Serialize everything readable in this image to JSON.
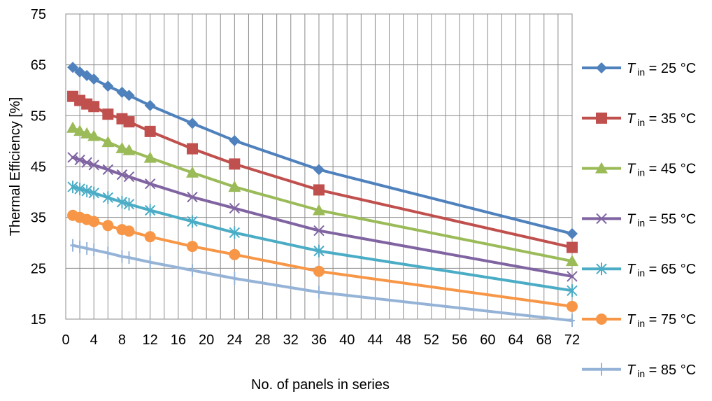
{
  "chart_data": {
    "type": "line",
    "title": "",
    "xlabel": "No. of panels in series",
    "ylabel": "Thermal Efficiency [%]",
    "xlim": [
      0,
      72
    ],
    "ylim": [
      15,
      75
    ],
    "x_ticks": [
      "0",
      "4",
      "8",
      "12",
      "16",
      "20",
      "24",
      "28",
      "32",
      "36",
      "40",
      "44",
      "48",
      "52",
      "56",
      "60",
      "64",
      "68",
      "72"
    ],
    "y_ticks": [
      "15",
      "25",
      "35",
      "45",
      "55",
      "65",
      "75"
    ],
    "grid": true,
    "legend_placement": "right",
    "x": [
      1,
      2,
      3,
      4,
      6,
      8,
      9,
      12,
      18,
      24,
      36,
      72
    ],
    "series": [
      {
        "name": "T_in = 25 °C",
        "legend": {
          "var": "T",
          "sub": "in",
          "rest": " = 25 °C"
        },
        "color": "#4F81BD",
        "marker": "diamond",
        "values": [
          64.5,
          63.6,
          62.9,
          62.2,
          60.8,
          59.6,
          59.0,
          57.0,
          53.5,
          50.1,
          44.4,
          31.8
        ]
      },
      {
        "name": "T_in = 35 °C",
        "legend": {
          "var": "T",
          "sub": "in",
          "rest": " = 35 °C"
        },
        "color": "#C0504D",
        "marker": "square",
        "values": [
          58.8,
          58.0,
          57.3,
          56.8,
          55.3,
          54.4,
          53.8,
          51.9,
          48.5,
          45.5,
          40.4,
          29.1
        ]
      },
      {
        "name": "T_in = 45 °C",
        "legend": {
          "var": "T",
          "sub": "in",
          "rest": " = 45 °C"
        },
        "color": "#9BBB59",
        "marker": "triangle",
        "values": [
          52.6,
          52.0,
          51.5,
          51.0,
          49.8,
          48.6,
          48.2,
          46.7,
          43.8,
          41.0,
          36.4,
          26.4
        ]
      },
      {
        "name": "T_in = 55 °C",
        "legend": {
          "var": "T",
          "sub": "in",
          "rest": " = 55 °C"
        },
        "color": "#8064A2",
        "marker": "x",
        "values": [
          46.8,
          46.3,
          45.8,
          45.3,
          44.4,
          43.4,
          43.0,
          41.6,
          39.0,
          36.8,
          32.4,
          23.4
        ]
      },
      {
        "name": "T_in = 65 °C",
        "legend": {
          "var": "T",
          "sub": "in",
          "rest": " = 65 °C"
        },
        "color": "#4BACC6",
        "marker": "star",
        "values": [
          41.0,
          40.6,
          40.2,
          39.8,
          38.9,
          38.0,
          37.6,
          36.4,
          34.2,
          32.0,
          28.4,
          20.6
        ]
      },
      {
        "name": "T_in = 75 °C",
        "legend": {
          "var": "T",
          "sub": "in",
          "rest": " = 75 °C"
        },
        "color": "#F79646",
        "marker": "circle",
        "values": [
          35.4,
          35.0,
          34.6,
          34.2,
          33.4,
          32.6,
          32.3,
          31.2,
          29.3,
          27.7,
          24.4,
          17.5
        ]
      },
      {
        "name": "T_in = 85 °C",
        "legend": {
          "var": "T",
          "sub": "in",
          "rest": " = 85 °C"
        },
        "color": "#95B3D7",
        "marker": "plus",
        "values": [
          29.5,
          29.2,
          28.9,
          28.6,
          28.0,
          27.3,
          27.1,
          26.2,
          24.6,
          23.0,
          20.3,
          14.7
        ]
      }
    ]
  }
}
